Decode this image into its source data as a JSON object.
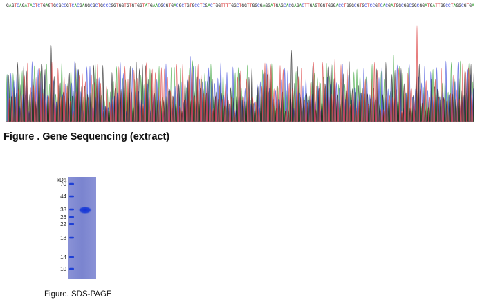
{
  "sequence": {
    "text": "GAGTCAGATACTCTGAGTGCGCCGTCACGAGGCGCTGCCCGGTGGTGTGTGGTATGAACGCGTGACGCTGTGCCTCGACTGGTTTTGGCTGGTTGGCGAGGATGAGCACGAGACTTGAGTGGTGGGACCTGGGCGTGCTCCGTCACGATGGCGGCGGCGGATGATTGGCCTAGGCGTGACTGTTCTCAGTTGAGTTGGCCACTTACGACGA",
    "colors": {
      "A": "#2f9f2f",
      "C": "#3040d8",
      "G": "#111111",
      "T": "#d83030"
    }
  },
  "chromatogram": {
    "colors": [
      "#2f9f2f",
      "#3040d8",
      "#111111",
      "#d83030"
    ]
  },
  "figure1": {
    "caption": "Figure . Gene Sequencing (extract)"
  },
  "gel": {
    "unit_label": "kDa",
    "ladder": [
      "70",
      "44",
      "33",
      "26",
      "22",
      "18",
      "14",
      "10"
    ],
    "lane_color": "#7c86d2",
    "band_color": "#1d3fd6"
  },
  "figure2": {
    "caption": "Figure. SDS-PAGE"
  }
}
